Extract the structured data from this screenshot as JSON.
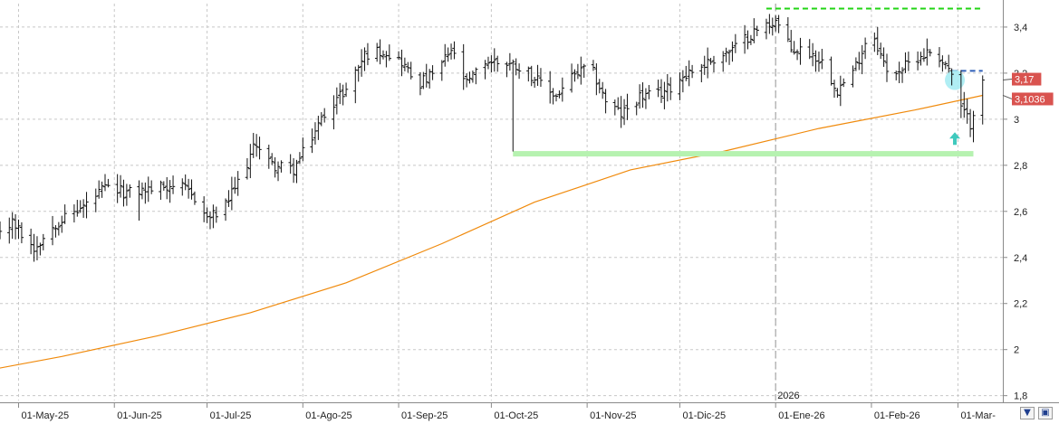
{
  "chart_data": {
    "type": "ohlc",
    "y_axis": {
      "ticks": [
        "1,8",
        "2",
        "2,2",
        "2,4",
        "2,6",
        "2,8",
        "3",
        "3,2",
        "3,4"
      ],
      "tick_values": [
        1.8,
        2.0,
        2.2,
        2.4,
        2.6,
        2.8,
        3.0,
        3.2,
        3.4
      ],
      "range": [
        1.75,
        3.52
      ],
      "position": "right"
    },
    "x_axis": {
      "labels": [
        "01-May-25",
        "01-Jun-25",
        "01-Jul-25",
        "01-Ago-25",
        "01-Sep-25",
        "01-Oct-25",
        "01-Nov-25",
        "01-Dic-25",
        "01-Ene-26",
        "01-Feb-26",
        "01-Mar-"
      ],
      "dates": [
        "2025-05-01",
        "2025-06-01",
        "2025-07-01",
        "2025-08-01",
        "2025-09-01",
        "2025-10-01",
        "2025-11-01",
        "2025-12-01",
        "2026-01-01",
        "2026-02-01",
        "2026-03-01"
      ],
      "year_marker": "2026",
      "year_marker_date": "2026-01-01"
    },
    "grid": true,
    "price_anchors": [
      [
        "2025-04-22",
        2.5
      ],
      [
        "2025-04-29",
        2.55
      ],
      [
        "2025-05-06",
        2.44
      ],
      [
        "2025-05-13",
        2.55
      ],
      [
        "2025-05-22",
        2.62
      ],
      [
        "2025-05-29",
        2.7
      ],
      [
        "2025-06-05",
        2.68
      ],
      [
        "2025-06-14",
        2.7
      ],
      [
        "2025-06-21",
        2.72
      ],
      [
        "2025-06-27",
        2.66
      ],
      [
        "2025-07-01",
        2.57
      ],
      [
        "2025-07-06",
        2.6
      ],
      [
        "2025-07-12",
        2.75
      ],
      [
        "2025-07-17",
        2.9
      ],
      [
        "2025-07-22",
        2.8
      ],
      [
        "2025-07-29",
        2.78
      ],
      [
        "2025-08-03",
        2.9
      ],
      [
        "2025-08-09",
        3.05
      ],
      [
        "2025-08-15",
        3.13
      ],
      [
        "2025-08-21",
        3.28
      ],
      [
        "2025-08-27",
        3.3
      ],
      [
        "2025-09-02",
        3.25
      ],
      [
        "2025-09-07",
        3.15
      ],
      [
        "2025-09-13",
        3.2
      ],
      [
        "2025-09-18",
        3.3
      ],
      [
        "2025-09-23",
        3.15
      ],
      [
        "2025-09-29",
        3.25
      ],
      [
        "2025-10-05",
        3.25
      ],
      [
        "2025-10-12",
        3.22
      ],
      [
        "2025-10-17",
        3.15
      ],
      [
        "2025-10-22",
        3.1
      ],
      [
        "2025-10-27",
        3.18
      ],
      [
        "2025-11-02",
        3.23
      ],
      [
        "2025-11-07",
        3.08
      ],
      [
        "2025-11-12",
        3.02
      ],
      [
        "2025-11-18",
        3.1
      ],
      [
        "2025-11-23",
        3.1
      ],
      [
        "2025-11-28",
        3.14
      ],
      [
        "2025-12-03",
        3.2
      ],
      [
        "2025-12-08",
        3.23
      ],
      [
        "2025-12-13",
        3.27
      ],
      [
        "2025-12-18",
        3.3
      ],
      [
        "2025-12-24",
        3.37
      ],
      [
        "2026-01-01",
        3.43
      ],
      [
        "2026-01-06",
        3.3
      ],
      [
        "2026-01-11",
        3.3
      ],
      [
        "2026-01-16",
        3.25
      ],
      [
        "2026-01-21",
        3.13
      ],
      [
        "2026-01-26",
        3.2
      ],
      [
        "2026-02-01",
        3.4
      ],
      [
        "2026-02-06",
        3.2
      ],
      [
        "2026-02-11",
        3.22
      ],
      [
        "2026-02-16",
        3.27
      ],
      [
        "2026-02-21",
        3.3
      ],
      [
        "2026-02-26",
        3.22
      ],
      [
        "2026-03-02",
        3.05
      ],
      [
        "2026-03-05",
        2.98
      ],
      [
        "2026-03-08",
        3.15
      ],
      [
        "2026-03-09",
        3.17
      ]
    ],
    "bar_anomalies": [
      {
        "date": "2025-10-08",
        "low": 2.86
      },
      {
        "date": "2025-06-08",
        "low": 2.56
      },
      {
        "date": "2026-03-06",
        "low": 2.9
      }
    ],
    "moving_average": {
      "color": "#f08a0c",
      "points": [
        [
          "2025-04-21",
          1.91
        ],
        [
          "2025-05-15",
          1.97
        ],
        [
          "2025-06-15",
          2.06
        ],
        [
          "2025-07-15",
          2.16
        ],
        [
          "2025-08-15",
          2.29
        ],
        [
          "2025-09-15",
          2.46
        ],
        [
          "2025-10-15",
          2.64
        ],
        [
          "2025-11-15",
          2.78
        ],
        [
          "2025-12-15",
          2.86
        ],
        [
          "2026-01-15",
          2.96
        ],
        [
          "2026-02-15",
          3.04
        ],
        [
          "2026-03-09",
          3.1036
        ]
      ]
    },
    "annotations": [
      {
        "kind": "hline-dashed",
        "color": "#22d414",
        "value": 3.48,
        "from": "2025-12-29",
        "to": "2026-03-09"
      },
      {
        "kind": "hline-dashed",
        "color": "#2f5fb8",
        "value": 3.21,
        "from": "2026-02-27",
        "to": "2026-03-09"
      },
      {
        "kind": "support-band",
        "color": "#b6f2b0",
        "value": 2.85,
        "from": "2025-10-08",
        "to": "2026-03-06"
      },
      {
        "kind": "circle",
        "color": "#a7ecf3",
        "date": "2026-02-28",
        "value": 3.17
      },
      {
        "kind": "up-arrow",
        "color": "#3fc9bd",
        "date": "2026-02-28",
        "value": 2.92
      }
    ],
    "price_tags": [
      {
        "label": "3,17",
        "value": 3.17,
        "color": "#d9534f"
      },
      {
        "label": "3,1036",
        "value": 3.1036,
        "color": "#d9534f"
      }
    ],
    "bar_color": "#111111"
  },
  "controls": {
    "collapse_icon": "chevron-down-icon",
    "save_icon": "save-icon"
  }
}
